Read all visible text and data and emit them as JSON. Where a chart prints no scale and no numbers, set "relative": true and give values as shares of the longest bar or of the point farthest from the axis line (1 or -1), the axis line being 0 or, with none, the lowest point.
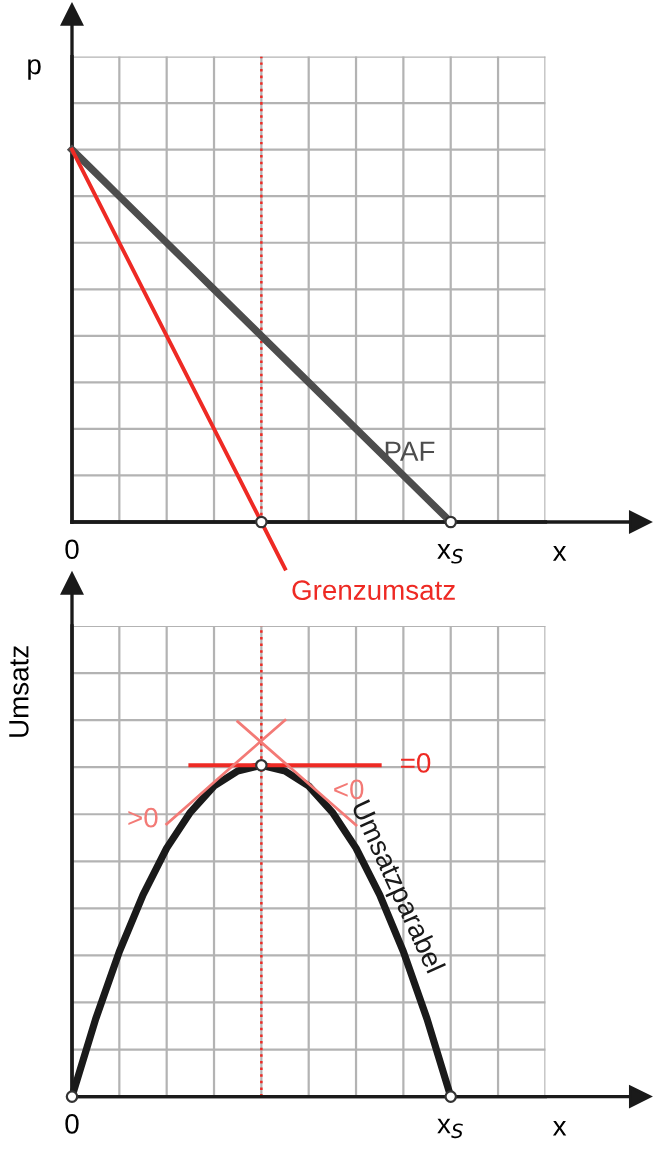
{
  "chart_data": [
    {
      "type": "line",
      "relative": true,
      "ylabel": "p",
      "xlabel": "x",
      "grid": true,
      "categories": [
        "0",
        null,
        null,
        null,
        null,
        null,
        null,
        null,
        null,
        null,
        null,
        null,
        null,
        null,
        null,
        null,
        "x$_{S}$",
        null,
        null,
        null,
        null
      ],
      "series": [
        {
          "name": "PAF",
          "color": "#4d4d4d",
          "values": [
            1,
            0.9375,
            0.875,
            0.8125,
            0.75,
            0.6875,
            0.625,
            0.5625,
            0.5,
            0.4375,
            0.375,
            0.3125,
            0.25,
            0.1875,
            0.125,
            0.0625,
            0,
            null,
            null,
            null,
            null
          ]
        },
        {
          "name": "Grenzumsatz",
          "color": "#ee2a24",
          "values": [
            1,
            0.875,
            0.75,
            0.625,
            0.5,
            0.375,
            0.25,
            0.125,
            0,
            -0.125,
            null,
            null,
            null,
            null,
            null,
            null,
            null,
            null,
            null,
            null,
            null
          ]
        },
        {
          "type": "scatter",
          "marker": "circle",
          "color": "#ffffff",
          "values": [
            null,
            null,
            null,
            null,
            null,
            null,
            null,
            null,
            0,
            null,
            null,
            null,
            null,
            null,
            null,
            null,
            0,
            null,
            null,
            null,
            null
          ]
        }
      ]
    },
    {
      "type": "line",
      "relative": true,
      "ylabel": "Umsatz",
      "xlabel": "x",
      "grid": true,
      "categories": [
        "0",
        null,
        null,
        null,
        null,
        null,
        null,
        null,
        null,
        null,
        null,
        null,
        null,
        null,
        null,
        null,
        "x$_{S}$",
        null,
        null,
        null,
        null
      ],
      "series": [
        {
          "name": "Umsatzparabel",
          "color": "#1a1a1a",
          "values": [
            0,
            0.206,
            0.385,
            0.536,
            0.66,
            0.755,
            0.825,
            0.865,
            0.88,
            0.865,
            0.825,
            0.755,
            0.66,
            0.536,
            0.385,
            0.206,
            0,
            null,
            null,
            null,
            null
          ]
        },
        {
          "name": "=0",
          "color": "#ee2a24",
          "values": [
            null,
            null,
            null,
            null,
            null,
            0.88,
            0.88,
            0.88,
            0.88,
            0.88,
            0.88,
            0.88,
            0.88,
            0.88,
            null,
            null,
            null,
            null,
            null,
            null,
            null
          ]
        },
        {
          "name": ">0",
          "color": "#f37a76",
          "values": [
            null,
            null,
            null,
            null,
            0.724,
            0.779,
            0.835,
            0.89,
            0.945,
            1,
            null,
            null,
            null,
            null,
            null,
            null,
            null,
            null,
            null,
            null,
            null
          ]
        },
        {
          "name": "<0",
          "color": "#f37a76",
          "values": [
            null,
            null,
            null,
            null,
            null,
            null,
            null,
            0.996,
            0.941,
            0.886,
            0.831,
            0.776,
            0.721,
            null,
            null,
            null,
            null,
            null,
            null,
            null,
            null
          ]
        },
        {
          "type": "scatter",
          "marker": "circle",
          "color": "#ffffff",
          "values": [
            0,
            null,
            null,
            null,
            null,
            null,
            null,
            null,
            0.88,
            null,
            null,
            null,
            null,
            null,
            null,
            null,
            0,
            null,
            null,
            null,
            null
          ]
        }
      ]
    }
  ]
}
